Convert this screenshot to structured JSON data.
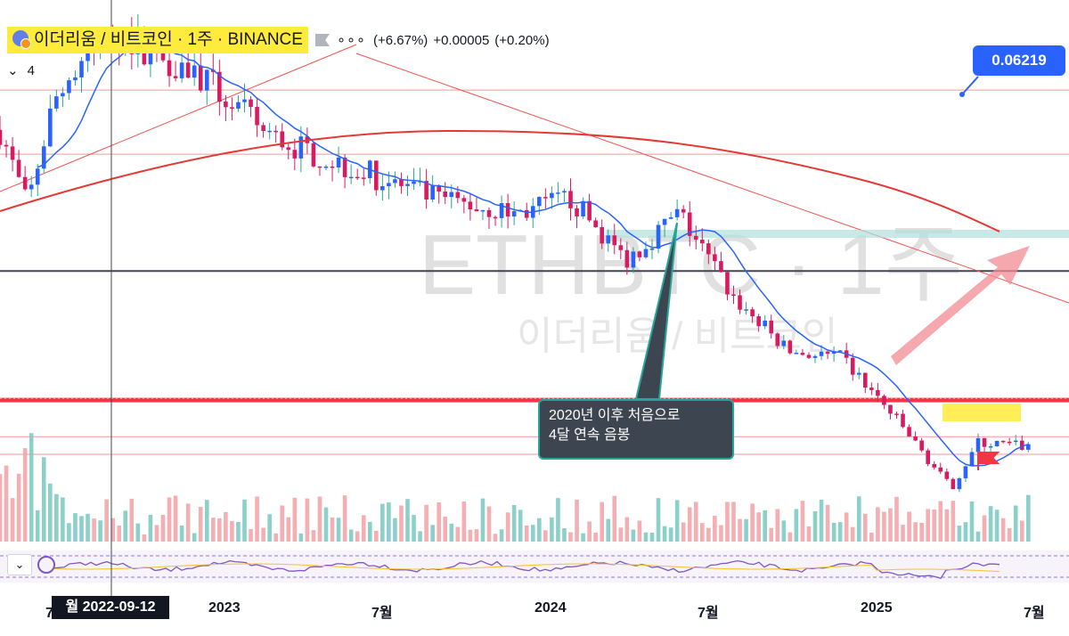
{
  "header": {
    "symbol_label": "이더리움 / 비트코인 · 1주 · BINANCE",
    "dots": "∘∘∘",
    "change_pct": "(+6.67%)",
    "change_abs": "+0.00005",
    "change_pct2": "(+0.20%)",
    "indicator_count": "4"
  },
  "price_tag": "0.06219",
  "watermark": {
    "main": "ETHBTC · 1주",
    "sub": "이더리움 / 비트코인"
  },
  "annotation": {
    "line1": "2020년 이후 처음으로",
    "line2": "4달 연속 음봉"
  },
  "crosshair_date": "월 2022-09-12",
  "x_axis": {
    "labels": [
      {
        "text": "7월",
        "x": "2022-07"
      },
      {
        "text": "2023",
        "x": "2023-01"
      },
      {
        "text": "7월",
        "x": "2023-07"
      },
      {
        "text": "2024",
        "x": "2024-01"
      },
      {
        "text": "7월",
        "x": "2024-07"
      },
      {
        "text": "2025",
        "x": "2025-01"
      },
      {
        "text": "7월",
        "x": "2025-07"
      }
    ]
  },
  "colors": {
    "up": "#26a69a",
    "down": "#d81b60",
    "ma_fast": "#2962ff",
    "ma_slow": "#e53935",
    "accent": "#2962ff"
  },
  "icons": {
    "symbol": "eth-btc-icon",
    "flag": "flag-icon",
    "rsi": "rsi-icon"
  },
  "chart_data": {
    "type": "candlestick",
    "symbol": "ETHBTC",
    "interval": "1주",
    "exchange": "BINANCE",
    "ylim": [
      0.02,
      0.09
    ],
    "horizontal_levels": [
      0.0712,
      0.0628,
      0.0475,
      0.0306,
      0.0258,
      0.0235
    ],
    "last_close": 0.0245,
    "series": [
      {
        "name": "ETHBTC",
        "type": "candles",
        "monthly_close_approx": [
          {
            "x": "2022-05",
            "v": 0.066
          },
          {
            "x": "2022-06",
            "v": 0.056
          },
          {
            "x": "2022-07",
            "v": 0.07
          },
          {
            "x": "2022-09",
            "v": 0.079
          },
          {
            "x": "2022-12",
            "v": 0.074
          },
          {
            "x": "2023-03",
            "v": 0.065
          },
          {
            "x": "2023-06",
            "v": 0.061
          },
          {
            "x": "2023-09",
            "v": 0.057
          },
          {
            "x": "2023-12",
            "v": 0.055
          },
          {
            "x": "2024-02",
            "v": 0.057
          },
          {
            "x": "2024-04",
            "v": 0.049
          },
          {
            "x": "2024-06",
            "v": 0.055
          },
          {
            "x": "2024-08",
            "v": 0.044
          },
          {
            "x": "2024-10",
            "v": 0.037
          },
          {
            "x": "2024-12",
            "v": 0.036
          },
          {
            "x": "2025-02",
            "v": 0.028
          },
          {
            "x": "2025-04",
            "v": 0.019
          },
          {
            "x": "2025-05",
            "v": 0.025
          },
          {
            "x": "2025-07",
            "v": 0.0245
          }
        ]
      },
      {
        "name": "MA-fast",
        "type": "line",
        "color": "#2962ff"
      },
      {
        "name": "MA-slow",
        "type": "line",
        "color": "#e53935"
      }
    ],
    "grid": false,
    "legend": "top-left"
  }
}
